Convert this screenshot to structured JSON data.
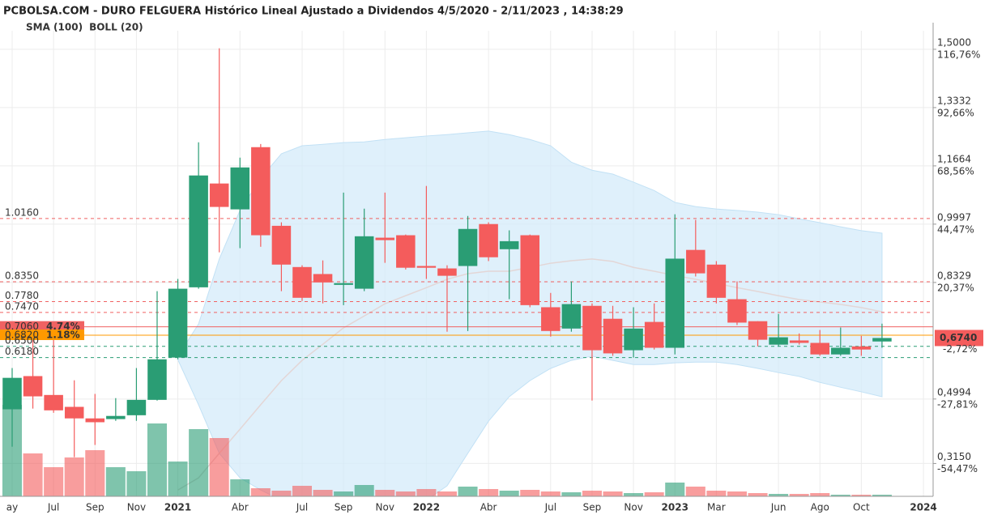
{
  "chart_data": {
    "type": "candlestick",
    "title": "PCBOLSA.COM - DURO FELGUERA Histórico Lineal Ajustado a Dividendos 4/5/2020 - 2/11/2023 , 14:38:29",
    "categories": [
      "ay",
      null,
      "Jul",
      null,
      "Sep",
      null,
      "Nov",
      null,
      "2021",
      null,
      null,
      "Abr",
      null,
      null,
      "Jul",
      null,
      "Sep",
      null,
      "Nov",
      null,
      "2022",
      null,
      null,
      "Abr",
      null,
      null,
      "Jul",
      null,
      "Sep",
      null,
      "Nov",
      null,
      "2023",
      null,
      "Mar",
      null,
      null,
      "Jun",
      null,
      "Ago",
      null,
      "Oct",
      null,
      null,
      "2024"
    ],
    "open": [
      0.47,
      0.565,
      0.511,
      0.477,
      0.444,
      0.442,
      0.453,
      0.497,
      0.618,
      0.819,
      1.116,
      1.042,
      1.22,
      0.995,
      0.877,
      0.857,
      0.826,
      0.815,
      0.961,
      0.968,
      0.88,
      0.873,
      0.88,
      1.0,
      0.928,
      0.968,
      0.762,
      0.701,
      0.766,
      0.729,
      0.639,
      0.72,
      0.646,
      0.926,
      0.884,
      0.785,
      0.722,
      0.655,
      0.667,
      0.66,
      0.627,
      0.65,
      0.664,
      null,
      null
    ],
    "high": [
      0.588,
      0.669,
      0.669,
      0.553,
      0.514,
      0.502,
      0.588,
      0.808,
      0.843,
      1.234,
      1.503,
      1.19,
      1.229,
      1.005,
      0.882,
      0.896,
      1.09,
      1.044,
      1.09,
      0.97,
      1.109,
      0.882,
      1.023,
      1.005,
      0.982,
      0.97,
      0.803,
      0.836,
      0.773,
      0.766,
      0.762,
      0.773,
      1.028,
      1.012,
      0.894,
      0.836,
      0.722,
      0.743,
      0.687,
      0.697,
      0.704,
      0.68,
      0.715,
      null,
      null
    ],
    "low": [
      0.363,
      0.472,
      0.46,
      0.333,
      0.368,
      0.437,
      0.437,
      0.495,
      0.613,
      0.815,
      0.919,
      0.931,
      0.935,
      0.808,
      0.78,
      0.773,
      0.768,
      0.808,
      0.889,
      0.87,
      0.843,
      0.692,
      0.694,
      0.894,
      0.785,
      0.762,
      0.678,
      0.692,
      0.495,
      0.623,
      0.618,
      0.641,
      0.627,
      0.85,
      0.773,
      0.711,
      0.65,
      0.65,
      0.655,
      0.623,
      0.623,
      0.623,
      0.646,
      null,
      null
    ],
    "close": [
      0.56,
      0.507,
      0.467,
      0.444,
      0.433,
      0.451,
      0.497,
      0.613,
      0.815,
      1.139,
      1.049,
      1.162,
      0.968,
      0.884,
      0.789,
      0.833,
      0.831,
      0.965,
      0.954,
      0.875,
      0.875,
      0.852,
      0.986,
      0.905,
      0.951,
      0.768,
      0.694,
      0.771,
      0.639,
      0.63,
      0.701,
      0.646,
      0.901,
      0.859,
      0.789,
      0.718,
      0.669,
      0.676,
      0.66,
      0.627,
      0.646,
      0.641,
      0.674,
      null,
      null
    ],
    "volume": [
      113,
      53,
      36,
      48,
      57,
      36,
      31,
      90,
      43,
      83,
      72,
      21,
      10,
      7,
      13,
      8,
      6,
      14,
      8,
      6,
      9,
      6,
      12,
      9,
      7,
      8,
      6,
      5,
      7,
      6,
      4,
      5,
      17,
      12,
      7,
      6,
      4,
      3,
      3,
      4,
      2,
      2,
      2,
      null,
      null
    ],
    "up_color": "#2a9d74",
    "down_color": "#f45c5c",
    "series": [
      {
        "name": "SMA (100)",
        "color": "#aedcf5",
        "values": [
          null,
          null,
          null,
          null,
          null,
          null,
          null,
          null,
          0.239,
          0.274,
          0.344,
          0.413,
          0.483,
          0.552,
          0.61,
          0.656,
          0.703,
          0.737,
          0.772,
          0.795,
          0.818,
          0.842,
          0.858,
          0.865,
          0.865,
          0.876,
          0.888,
          0.895,
          0.9,
          0.893,
          0.876,
          0.865,
          0.853,
          0.842,
          0.83,
          0.818,
          0.807,
          0.795,
          0.784,
          0.777,
          0.77,
          0.761,
          0.749,
          null,
          null
        ]
      },
      {
        "name": "BOLL (20)",
        "color": "#dcdcdc",
        "upper": [
          null,
          null,
          null,
          null,
          null,
          null,
          null,
          null,
          0.622,
          0.714,
          0.9,
          1.039,
          1.131,
          1.201,
          1.224,
          1.228,
          1.233,
          1.235,
          1.242,
          1.247,
          1.252,
          1.256,
          1.261,
          1.266,
          1.256,
          1.242,
          1.224,
          1.177,
          1.154,
          1.143,
          1.12,
          1.096,
          1.062,
          1.05,
          1.043,
          1.039,
          1.034,
          1.027,
          1.015,
          1.004,
          0.992,
          0.981,
          0.974,
          null,
          null
        ],
        "lower": [
          null,
          null,
          null,
          null,
          null,
          null,
          null,
          null,
          0.612,
          0.483,
          0.344,
          0.274,
          0.239,
          0.21,
          0.21,
          0.21,
          0.21,
          0.21,
          0.21,
          0.21,
          0.21,
          0.251,
          0.344,
          0.436,
          0.506,
          0.552,
          0.587,
          0.61,
          0.622,
          0.61,
          0.598,
          0.598,
          0.603,
          0.605,
          0.605,
          0.598,
          0.587,
          0.575,
          0.564,
          0.547,
          0.533,
          0.52,
          0.506,
          null,
          null
        ]
      }
    ],
    "ylim": [
      0.221,
      1.553
    ],
    "yticks": [
      {
        "value": 1.5,
        "label": "1,5000"
      },
      {
        "value": 1.3332,
        "label": "1,3332"
      },
      {
        "value": 1.1664,
        "label": "1,1664"
      },
      {
        "value": 0.9997,
        "label": "0,9997"
      },
      {
        "value": 0.8329,
        "label": "0,8329"
      },
      {
        "value": 0.4994,
        "label": "0,4994"
      },
      {
        "value": 0.315,
        "label": "0,3150"
      }
    ],
    "y2lim": [
      -68.06,
      124.42
    ],
    "y2ticks": [
      {
        "value": 116.76,
        "label": "116,76%"
      },
      {
        "value": 92.66,
        "label": "92,66%"
      },
      {
        "value": 68.56,
        "label": "68,56%"
      },
      {
        "value": 44.47,
        "label": "44,47%"
      },
      {
        "value": 20.37,
        "label": "20,37%"
      },
      {
        "value": -27.81,
        "label": "-27,81%"
      },
      {
        "value": -54.47,
        "label": "-54,47%"
      }
    ],
    "levels": [
      {
        "value": 1.016,
        "label": "1.0160",
        "color": "#f06262",
        "style": "dashed"
      },
      {
        "value": 0.835,
        "label": "0.8350",
        "color": "#f06262",
        "style": "dashed"
      },
      {
        "value": 0.778,
        "label": "0.7780",
        "color": "#f06262",
        "style": "dashed"
      },
      {
        "value": 0.747,
        "label": "0.7470",
        "color": "#f06262",
        "style": "dashed"
      },
      {
        "value": 0.706,
        "label": "0.7060",
        "pct": "4.74%",
        "color": "#f06262",
        "style": "solid"
      },
      {
        "value": 0.682,
        "label": "0.6820",
        "pct": "1.18%",
        "color": "#ff9900",
        "style": "solid"
      },
      {
        "value": 0.65,
        "label": "0.6500",
        "color": "#2a9d74",
        "style": "dashed"
      },
      {
        "value": 0.618,
        "label": "0.6180",
        "color": "#2a9d74",
        "style": "dashed"
      }
    ],
    "last": {
      "value": 0.674,
      "label": "0,6740",
      "change_label": "-2,72%",
      "color": "#f45c5c"
    },
    "grid": true
  }
}
